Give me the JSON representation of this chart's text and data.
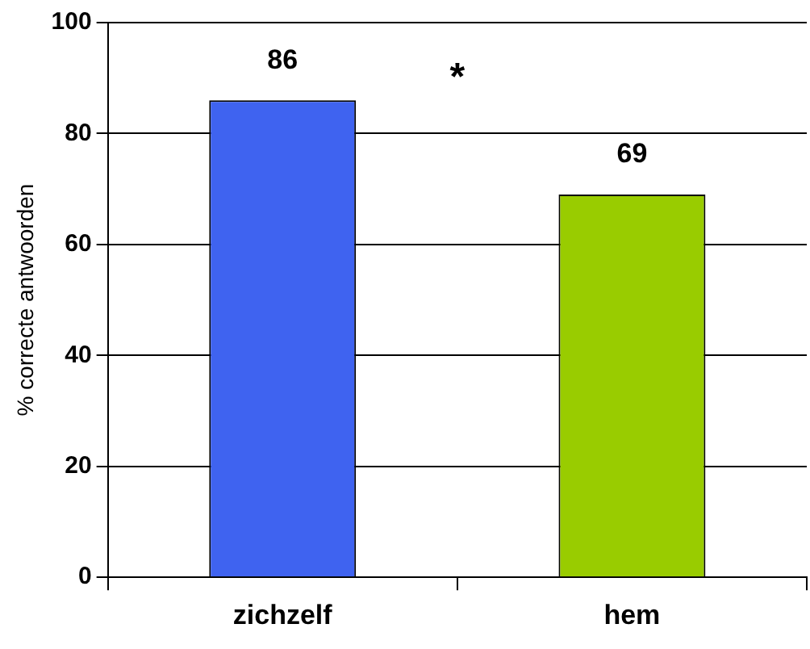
{
  "chart_data": {
    "type": "bar",
    "ylabel": "% correcte antwoorden",
    "categories": [
      "zichzelf",
      "hem"
    ],
    "colors": [
      "#3f63f0",
      "#99cc00"
    ],
    "values": [
      86,
      69
    ],
    "ylim": [
      0,
      100
    ],
    "yticks": [
      0,
      20,
      40,
      60,
      80,
      100
    ],
    "grid": "y",
    "data_labels": true,
    "annotations": [
      "*"
    ]
  }
}
